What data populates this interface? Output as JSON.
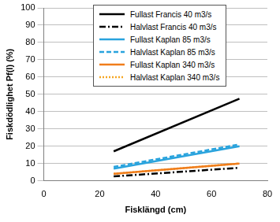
{
  "chart_data": {
    "type": "line",
    "x_label": "Fisklängd (cm)",
    "y_label": "Fiskdödlighet Pf(l) (%)",
    "x": [
      25,
      70
    ],
    "series": [
      {
        "name": "Fullast Francis 40 m3/s",
        "color": "#000000",
        "line_style": "solid",
        "values": [
          17,
          47.5
        ]
      },
      {
        "name": "Halvlast Francis 40 m3/s",
        "color": "#000000",
        "line_style": "dashdot",
        "values": [
          2.5,
          7.5
        ]
      },
      {
        "name": "Fullast Kaplan 85 m3/s",
        "color": "#29a3dd",
        "line_style": "solid",
        "values": [
          7,
          20
        ]
      },
      {
        "name": "Halvlast Kaplan 85 m3/s",
        "color": "#29a3dd",
        "line_style": "dashed",
        "values": [
          8,
          21
        ]
      },
      {
        "name": "Fullast Kaplan 340 m3/s",
        "color": "#f07d1b",
        "line_style": "solid",
        "values": [
          4,
          10
        ]
      },
      {
        "name": "Halvlast Kaplan 340 m3/s",
        "color": "#f5a623",
        "line_style": "dotted",
        "values": [
          4,
          10
        ]
      }
    ],
    "xlim": [
      0,
      80
    ],
    "xticks": [
      0,
      20,
      40,
      60,
      80
    ],
    "ylim": [
      0,
      100
    ],
    "yticks": [
      0,
      10,
      20,
      30,
      40,
      50,
      60,
      70,
      80,
      90,
      100
    ],
    "grid": "y",
    "legend": "upper right"
  }
}
